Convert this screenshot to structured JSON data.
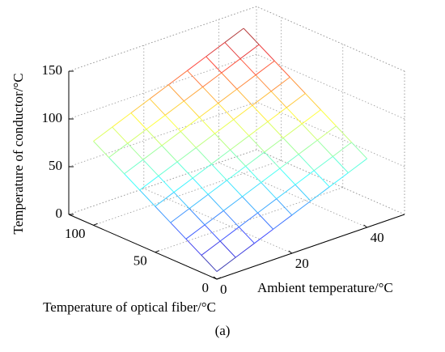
{
  "chart_data": {
    "type": "surface",
    "caption": "(a)",
    "x_label": "Ambient temperature/°C",
    "y_label": "Temperature of optical fiber/°C",
    "z_label": "Temperature of conductor/°C",
    "x": [
      0,
      5,
      10,
      15,
      20,
      25,
      30,
      35,
      40
    ],
    "y": [
      0,
      12.5,
      25,
      37.5,
      50,
      62.5,
      75,
      87.5,
      100
    ],
    "z": [
      [
        8,
        16,
        24,
        32,
        40,
        48,
        56,
        64,
        72
      ],
      [
        18,
        26,
        34,
        42,
        50,
        58,
        66,
        74,
        82
      ],
      [
        28,
        36,
        44,
        52,
        60,
        68,
        76,
        84,
        92
      ],
      [
        38,
        46,
        54,
        62,
        70,
        78,
        86,
        94,
        102
      ],
      [
        48,
        56,
        64,
        72,
        80,
        88,
        96,
        104,
        112
      ],
      [
        58,
        66,
        74,
        82,
        90,
        98,
        106,
        114,
        122
      ],
      [
        68,
        76,
        84,
        92,
        100,
        108,
        116,
        124,
        132
      ],
      [
        78,
        86,
        94,
        102,
        110,
        118,
        126,
        134,
        142
      ],
      [
        88,
        96,
        104,
        112,
        120,
        128,
        136,
        144,
        152
      ]
    ],
    "xlim": [
      0,
      50
    ],
    "ylim": [
      0,
      120
    ],
    "zlim": [
      0,
      150
    ],
    "xticks": [
      0,
      20,
      40
    ],
    "yticks": [
      0,
      50,
      100
    ],
    "zticks": [
      0,
      50,
      100,
      150
    ],
    "grid": true,
    "colormap": "jet"
  }
}
